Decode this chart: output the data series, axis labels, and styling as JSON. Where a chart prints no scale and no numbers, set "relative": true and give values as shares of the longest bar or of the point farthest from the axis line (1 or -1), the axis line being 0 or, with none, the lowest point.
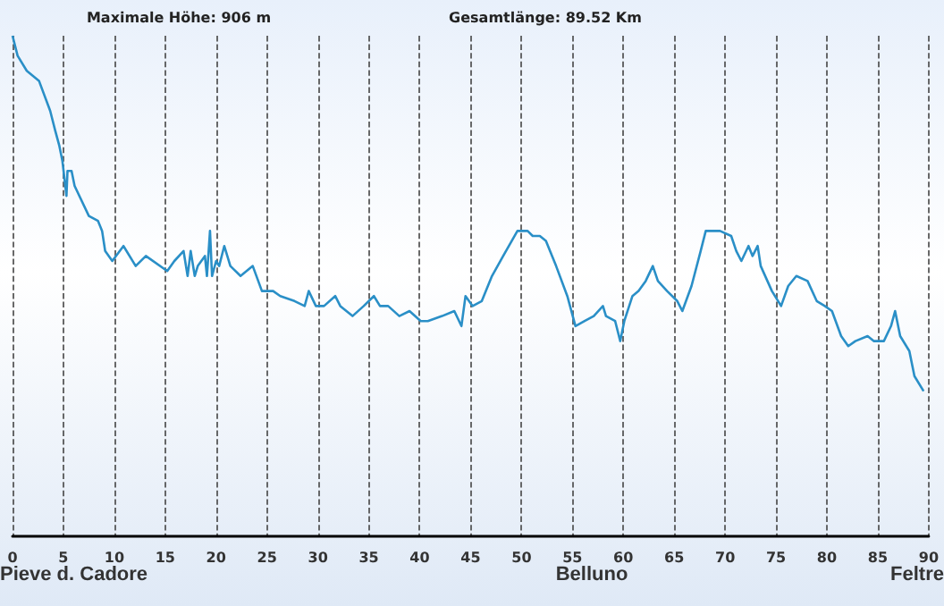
{
  "chart_data": {
    "type": "line",
    "title": "Maximale Höhe: 906 m",
    "subtitle": "Gesamtlänge: 89.52 Km",
    "relative": true,
    "grid": "x",
    "marker": "none",
    "line_style": "solid",
    "xlim": [
      0,
      90
    ],
    "xticks": [
      0,
      5,
      10,
      15,
      20,
      25,
      30,
      35,
      40,
      45,
      50,
      55,
      60,
      65,
      70,
      75,
      80,
      85,
      90
    ],
    "annotations": [
      "Pieve d. Cadore",
      "Belluno",
      "Feltre"
    ],
    "x": [
      0,
      0.5,
      1.4,
      2.6,
      3.7,
      4.2,
      4.6,
      4.9,
      5.3,
      5.4,
      5.8,
      6.1,
      7.5,
      8.4,
      8.8,
      9.1,
      9.8,
      10.9,
      12.1,
      13.1,
      15.2,
      15.9,
      16.8,
      17.2,
      17.5,
      17.9,
      18.2,
      18.9,
      19.1,
      19.4,
      19.6,
      20.0,
      20.3,
      20.8,
      21.4,
      22.4,
      23.6,
      24.5,
      25.6,
      26.3,
      27.7,
      28.7,
      29.1,
      29.8,
      30.6,
      31.7,
      32.2,
      33.4,
      34.5,
      35.5,
      36.1,
      36.9,
      38.0,
      39.0,
      40.1,
      40.8,
      42.2,
      43.4,
      44.1,
      44.5,
      45.2,
      46.1,
      47.1,
      48.2,
      49.6,
      50.6,
      51.1,
      51.8,
      52.4,
      53.4,
      54.5,
      55.3,
      56.2,
      57.1,
      58.0,
      58.3,
      59.2,
      59.7,
      60.1,
      60.9,
      61.5,
      62.2,
      62.9,
      63.4,
      64.3,
      65.3,
      65.8,
      66.7,
      67.6,
      68.1,
      69.5,
      70.6,
      71.1,
      71.6,
      72.3,
      72.7,
      73.2,
      73.5,
      74.6,
      75.5,
      76.2,
      77.0,
      78.1,
      79.0,
      79.8,
      80.5,
      81.4,
      82.1,
      82.8,
      84.0,
      84.6,
      85.6,
      86.3,
      86.7,
      87.2,
      88.1,
      88.6,
      89.5
    ],
    "series": [
      {
        "color": "#2a8fc7",
        "values": [
          1.0,
          0.96,
          0.93,
          0.91,
          0.85,
          0.81,
          0.78,
          0.75,
          0.68,
          0.73,
          0.73,
          0.7,
          0.64,
          0.63,
          0.61,
          0.57,
          0.55,
          0.58,
          0.54,
          0.56,
          0.53,
          0.55,
          0.57,
          0.52,
          0.57,
          0.52,
          0.54,
          0.56,
          0.52,
          0.61,
          0.52,
          0.55,
          0.54,
          0.58,
          0.54,
          0.52,
          0.54,
          0.49,
          0.49,
          0.48,
          0.47,
          0.46,
          0.49,
          0.46,
          0.46,
          0.48,
          0.46,
          0.44,
          0.46,
          0.48,
          0.46,
          0.46,
          0.44,
          0.45,
          0.43,
          0.43,
          0.44,
          0.45,
          0.42,
          0.48,
          0.46,
          0.47,
          0.52,
          0.56,
          0.61,
          0.61,
          0.6,
          0.6,
          0.59,
          0.54,
          0.48,
          0.42,
          0.43,
          0.44,
          0.46,
          0.44,
          0.43,
          0.39,
          0.43,
          0.48,
          0.49,
          0.51,
          0.54,
          0.51,
          0.49,
          0.47,
          0.45,
          0.5,
          0.57,
          0.61,
          0.61,
          0.6,
          0.57,
          0.55,
          0.58,
          0.56,
          0.58,
          0.54,
          0.49,
          0.46,
          0.5,
          0.52,
          0.51,
          0.47,
          0.46,
          0.45,
          0.4,
          0.38,
          0.39,
          0.4,
          0.39,
          0.39,
          0.42,
          0.45,
          0.4,
          0.37,
          0.32,
          0.29
        ]
      }
    ]
  }
}
